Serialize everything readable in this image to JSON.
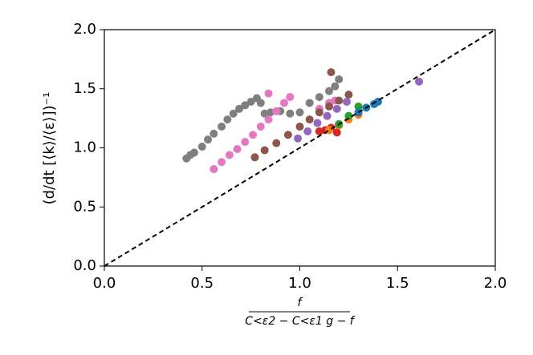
{
  "chart_data": {
    "type": "scatter",
    "xlabel": {
      "numerator": "f",
      "denominator": "C<ε2 − C<ε1 g − f"
    },
    "ylabel": "(d/dt [⟨k⟩/⟨ε⟩])⁻¹",
    "xlim": [
      0,
      2
    ],
    "ylim": [
      0,
      2
    ],
    "xticks": [
      {
        "value": 0,
        "label": "0.0"
      },
      0.5,
      {
        "value": 1,
        "label": "1.0"
      },
      1.5,
      {
        "value": 2,
        "label": "2.0"
      }
    ],
    "yticks": [
      {
        "value": 0,
        "label": "0.0"
      },
      0.5,
      {
        "value": 1,
        "label": "1.0"
      },
      1.5,
      {
        "value": 2,
        "label": "2.0"
      }
    ],
    "reference_line": {
      "x": [
        0,
        2
      ],
      "y": [
        0,
        2
      ],
      "color": "#000000"
    },
    "series": [
      {
        "color": "#7f7f7f",
        "x": [
          0.42,
          0.44,
          0.46,
          0.5,
          0.53,
          0.56,
          0.6,
          0.63,
          0.66,
          0.69,
          0.72,
          0.75,
          0.78,
          0.8,
          0.82,
          0.85,
          0.9,
          0.95,
          1.0,
          1.05,
          1.1,
          1.15,
          1.18,
          1.2
        ],
        "values": [
          0.91,
          0.94,
          0.96,
          1.01,
          1.07,
          1.12,
          1.18,
          1.24,
          1.29,
          1.33,
          1.36,
          1.39,
          1.42,
          1.38,
          1.29,
          1.3,
          1.31,
          1.29,
          1.3,
          1.38,
          1.43,
          1.48,
          1.52,
          1.58
        ]
      },
      {
        "color": "#e377c2",
        "x": [
          0.56,
          0.6,
          0.64,
          0.68,
          0.72,
          0.76,
          0.8,
          0.84,
          0.88,
          0.92,
          0.95,
          0.84,
          1.1,
          1.15,
          1.18
        ],
        "values": [
          0.82,
          0.88,
          0.94,
          0.99,
          1.05,
          1.11,
          1.18,
          1.24,
          1.31,
          1.38,
          1.43,
          1.46,
          1.33,
          1.38,
          1.4
        ]
      },
      {
        "color": "#8c564b",
        "x": [
          0.77,
          0.82,
          0.88,
          0.94,
          1.0,
          1.05,
          1.1,
          1.15,
          1.2,
          1.25,
          1.16
        ],
        "values": [
          0.92,
          0.98,
          1.04,
          1.11,
          1.18,
          1.24,
          1.3,
          1.35,
          1.4,
          1.45,
          1.64
        ]
      },
      {
        "color": "#9467bd",
        "x": [
          0.99,
          1.04,
          1.09,
          1.14,
          1.19,
          1.24,
          1.61
        ],
        "values": [
          1.08,
          1.14,
          1.21,
          1.27,
          1.33,
          1.39,
          1.56
        ]
      },
      {
        "color": "#d62728",
        "x": [
          1.1,
          1.13,
          1.16,
          1.19,
          1.2
        ],
        "values": [
          1.14,
          1.15,
          1.17,
          1.13,
          1.2
        ]
      },
      {
        "color": "#ff7f0e",
        "x": [
          1.15,
          1.2,
          1.25,
          1.3
        ],
        "values": [
          1.15,
          1.19,
          1.24,
          1.28
        ]
      },
      {
        "color": "#2ca02c",
        "x": [
          1.2,
          1.25,
          1.3
        ],
        "values": [
          1.2,
          1.27,
          1.35
        ]
      },
      {
        "color": "#1f77b4",
        "x": [
          1.3,
          1.34,
          1.38,
          1.4
        ],
        "values": [
          1.3,
          1.34,
          1.37,
          1.39
        ]
      }
    ]
  }
}
